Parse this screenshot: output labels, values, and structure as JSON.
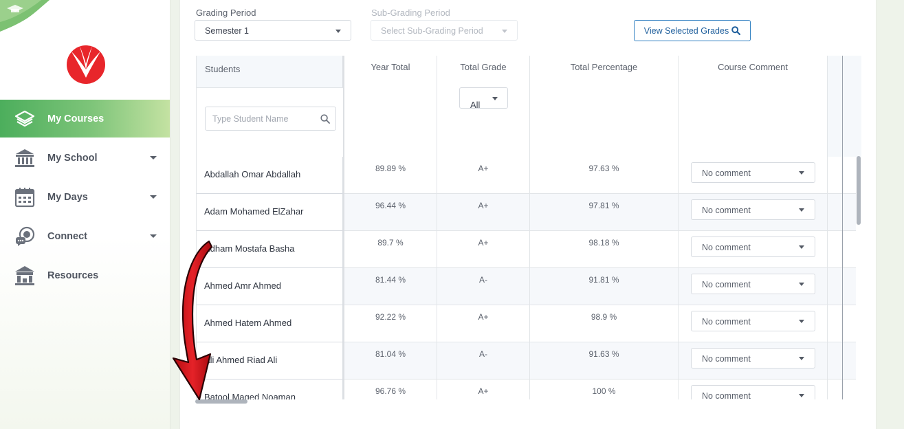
{
  "sidebar": {
    "items": [
      {
        "label": "My Courses",
        "icon": "layers-icon",
        "active": true,
        "has_caret": false
      },
      {
        "label": "My School",
        "icon": "school-building-icon",
        "active": false,
        "has_caret": true
      },
      {
        "label": "My Days",
        "icon": "calendar-icon",
        "active": false,
        "has_caret": true
      },
      {
        "label": "Connect",
        "icon": "chat-bubbles-icon",
        "active": false,
        "has_caret": true
      },
      {
        "label": "Resources",
        "icon": "library-building-icon",
        "active": false,
        "has_caret": false
      }
    ]
  },
  "filters": {
    "grading_period": {
      "label": "Grading Period",
      "value": "Semester 1"
    },
    "sub_grading_period": {
      "label": "Sub-Grading Period",
      "placeholder": "Select Sub-Grading Period"
    },
    "view_button": "View Selected Grades"
  },
  "grid": {
    "students_header": "Students",
    "search_placeholder": "Type Student Name",
    "columns": [
      "Year Total",
      "Total Grade",
      "Total Percentage",
      "Course Comment"
    ],
    "grade_filter": "All",
    "rows": [
      {
        "name": "Abdallah Omar Abdallah",
        "year_total": "89.89 %",
        "grade": "A+",
        "percentage": "97.63 %",
        "comment": "No comment"
      },
      {
        "name": "Adam Mohamed ElZahar",
        "year_total": "96.44 %",
        "grade": "A+",
        "percentage": "97.81 %",
        "comment": "No comment"
      },
      {
        "name": "Adham Mostafa Basha",
        "year_total": "89.7 %",
        "grade": "A+",
        "percentage": "98.18 %",
        "comment": "No comment"
      },
      {
        "name": "Ahmed Amr Ahmed",
        "year_total": "81.44 %",
        "grade": "A-",
        "percentage": "91.81 %",
        "comment": "No comment"
      },
      {
        "name": "Ahmed Hatem Ahmed",
        "year_total": "92.22 %",
        "grade": "A+",
        "percentage": "98.9 %",
        "comment": "No comment"
      },
      {
        "name": "Ali Ahmed Riad Ali",
        "year_total": "81.04 %",
        "grade": "A-",
        "percentage": "91.63 %",
        "comment": "No comment"
      },
      {
        "name": "Batool Maged Noaman",
        "year_total": "96.76 %",
        "grade": "A+",
        "percentage": "100 %",
        "comment": "No comment"
      }
    ]
  },
  "colors": {
    "accent_green": "#4cae5c",
    "brand_red": "#e8262b",
    "button_blue": "#2f7fc1",
    "annotation_arrow": "#d9161b"
  }
}
